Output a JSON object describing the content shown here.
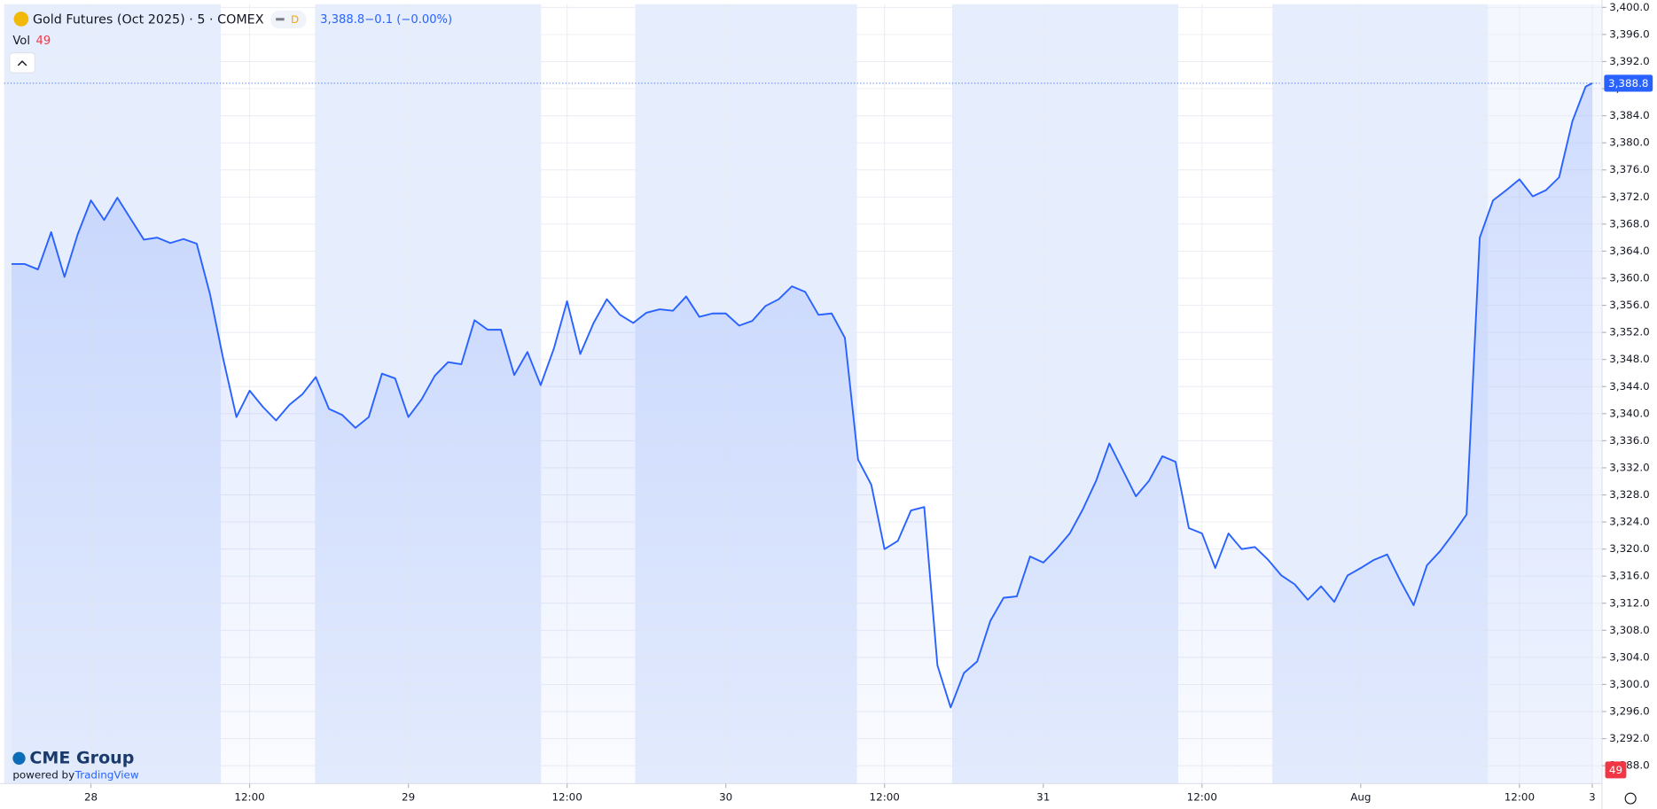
{
  "chart_data": {
    "type": "line",
    "title": "Gold Futures (Oct 2025) · 5 · COMEX",
    "interval_badge": "D",
    "last_price": {
      "value": 3388.8,
      "label": "3,388.8"
    },
    "change_text": "−0.1 (−0.00%)",
    "volume_label": "Vol",
    "volume_value": 49,
    "branding": {
      "logo": "CME Group",
      "powered_by": "powered by",
      "provider": "TradingView"
    },
    "grid": true,
    "xlim": [
      -6.55,
      114.24
    ],
    "ylim": [
      3285.35,
      3400.47
    ],
    "xticks": [
      {
        "value": 0,
        "label": "28"
      },
      {
        "value": 12,
        "label": "12:00"
      },
      {
        "value": 24,
        "label": "29"
      },
      {
        "value": 36,
        "label": "12:00"
      },
      {
        "value": 48,
        "label": "30"
      },
      {
        "value": 60,
        "label": "12:00"
      },
      {
        "value": 72,
        "label": "31"
      },
      {
        "value": 84,
        "label": "12:00"
      },
      {
        "value": 96,
        "label": "Aug"
      },
      {
        "value": 108,
        "label": "12:00"
      },
      {
        "value": 113.5,
        "label": "3"
      }
    ],
    "yticks": [
      {
        "value": 3288,
        "label": "3,288.0"
      },
      {
        "value": 3292,
        "label": "3,292.0"
      },
      {
        "value": 3296,
        "label": "3,296.0"
      },
      {
        "value": 3300,
        "label": "3,300.0"
      },
      {
        "value": 3304,
        "label": "3,304.0"
      },
      {
        "value": 3308,
        "label": "3,308.0"
      },
      {
        "value": 3312,
        "label": "3,312.0"
      },
      {
        "value": 3316,
        "label": "3,316.0"
      },
      {
        "value": 3320,
        "label": "3,320.0"
      },
      {
        "value": 3324,
        "label": "3,324.0"
      },
      {
        "value": 3328,
        "label": "3,328.0"
      },
      {
        "value": 3332,
        "label": "3,332.0"
      },
      {
        "value": 3336,
        "label": "3,336.0"
      },
      {
        "value": 3340,
        "label": "3,340.0"
      },
      {
        "value": 3344,
        "label": "3,344.0"
      },
      {
        "value": 3348,
        "label": "3,348.0"
      },
      {
        "value": 3352,
        "label": "3,352.0"
      },
      {
        "value": 3356,
        "label": "3,356.0"
      },
      {
        "value": 3360,
        "label": "3,360.0"
      },
      {
        "value": 3364,
        "label": "3,364.0"
      },
      {
        "value": 3368,
        "label": "3,368.0"
      },
      {
        "value": 3372,
        "label": "3,372.0"
      },
      {
        "value": 3376,
        "label": "3,376.0"
      },
      {
        "value": 3380,
        "label": "3,380.0"
      },
      {
        "value": 3384,
        "label": "3,384.0"
      },
      {
        "value": 3388,
        "label": "3,388.0"
      },
      {
        "value": 3392,
        "label": "3,392.0"
      },
      {
        "value": 3396,
        "label": "3,396.0"
      },
      {
        "value": 3400,
        "label": "3,400.0"
      }
    ],
    "series": [
      {
        "name": "Gold Futures (Oct 2025)",
        "color": "#2962ff",
        "x": [
          -6,
          -5,
          -4,
          -3,
          -2,
          -1,
          0,
          1,
          2,
          3,
          4,
          5,
          6,
          7,
          8,
          9,
          10,
          11,
          12,
          13,
          14,
          15,
          16,
          17,
          18,
          19,
          20,
          21,
          22,
          23,
          24,
          25,
          26,
          27,
          28,
          29,
          30,
          31,
          32,
          33,
          34,
          35,
          36,
          37,
          38,
          39,
          40,
          41,
          42,
          43,
          44,
          45,
          46,
          47,
          48,
          49,
          50,
          51,
          52,
          53,
          54,
          55,
          56,
          57,
          58,
          59,
          60,
          61,
          62,
          63,
          64,
          65,
          66,
          67,
          68,
          69,
          70,
          71,
          72,
          73,
          74,
          75,
          76,
          77,
          78,
          79,
          80,
          81,
          82,
          83,
          84,
          85,
          86,
          87,
          88,
          89,
          90,
          91,
          92,
          93,
          94,
          95,
          96,
          97,
          98,
          99,
          100,
          101,
          102,
          103,
          104,
          105,
          106,
          107,
          108,
          109,
          110,
          111,
          112,
          113,
          113.5
        ],
        "values": [
          3362.1,
          3362.1,
          3361.3,
          3366.8,
          3360.2,
          3366.5,
          3371.5,
          3368.6,
          3371.9,
          3368.8,
          3365.7,
          3366.0,
          3365.2,
          3365.8,
          3365.1,
          3357.7,
          3348.1,
          3339.5,
          3343.4,
          3341.0,
          3339.0,
          3341.3,
          3342.9,
          3345.4,
          3340.7,
          3339.8,
          3337.9,
          3339.5,
          3345.9,
          3345.2,
          3339.5,
          3342.1,
          3345.6,
          3347.6,
          3347.3,
          3353.8,
          3352.4,
          3352.4,
          3345.7,
          3349.1,
          3344.2,
          3349.6,
          3356.6,
          3348.8,
          3353.4,
          3356.9,
          3354.6,
          3353.4,
          3354.9,
          3355.4,
          3355.2,
          3357.3,
          3354.3,
          3354.8,
          3354.8,
          3353.0,
          3353.7,
          3355.9,
          3356.9,
          3358.8,
          3358.0,
          3354.6,
          3354.8,
          3351.2,
          3333.2,
          3329.5,
          3320.0,
          3321.2,
          3325.7,
          3326.2,
          3302.8,
          3296.6,
          3301.7,
          3303.4,
          3309.4,
          3312.8,
          3313.0,
          3318.9,
          3318.0,
          3320.0,
          3322.3,
          3325.9,
          3330.1,
          3335.6,
          3331.7,
          3327.8,
          3330.1,
          3333.7,
          3332.9,
          3323.1,
          3322.3,
          3317.2,
          3322.3,
          3320.0,
          3320.3,
          3318.4,
          3316.1,
          3314.8,
          3312.5,
          3314.5,
          3312.2,
          3316.1,
          3317.2,
          3318.4,
          3319.2,
          3315.3,
          3311.7,
          3317.6,
          3319.7,
          3322.3,
          3325.1,
          3366.0,
          3371.5,
          3373.0,
          3374.6,
          3372.1,
          3373.0,
          3374.9,
          3383.2,
          3388.3,
          3388.8
        ]
      }
    ]
  }
}
